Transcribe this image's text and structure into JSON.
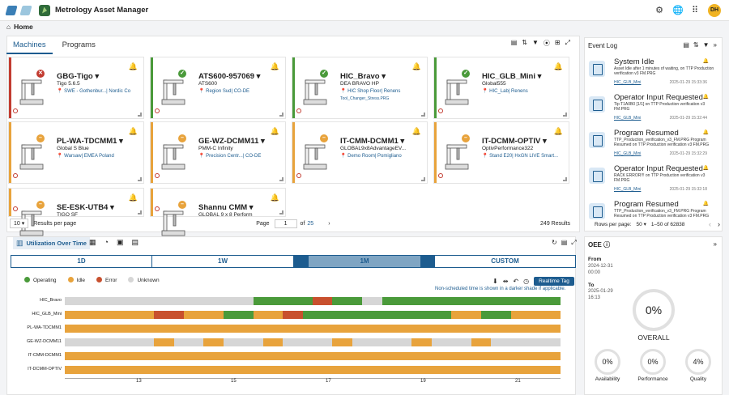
{
  "app": {
    "title": "Metrology Asset Manager",
    "avatar": "DH"
  },
  "breadcrumb": {
    "home": "Home"
  },
  "tabs": [
    {
      "label": "Machines"
    },
    {
      "label": "Programs"
    }
  ],
  "cards": [
    {
      "name": "GBG-Tigo",
      "model": "Tigo 5.6.5",
      "loc": "SWE - Gothenbur...| Nordic Co",
      "status": "error",
      "color": "#c23b30"
    },
    {
      "name": "ATS600-957069",
      "model": "ATS600",
      "loc": "Region Sud| CO-DE",
      "status": "operating",
      "color": "#4a9a3a"
    },
    {
      "name": "HIC_Bravo",
      "model": "DEA BRAVO HP",
      "loc": "HIC Shop Floor| Renens",
      "extra": "Tool_Changer_Stress.PRG",
      "status": "operating",
      "color": "#4a9a3a"
    },
    {
      "name": "HIC_GLB_Mini",
      "model": "Global555",
      "loc": "HIC_Lab| Renens",
      "status": "operating",
      "color": "#4a9a3a"
    },
    {
      "name": "PL-WA-TDCMM1",
      "model": "Global S Blue",
      "loc": "Warsaw| EMEA Poland",
      "status": "idle",
      "color": "#e8a33c"
    },
    {
      "name": "GE-WZ-DCMM11",
      "model": "PMM-C Infinity",
      "loc": "Precision Centr...| CO-DE",
      "status": "idle",
      "color": "#e8a33c"
    },
    {
      "name": "IT-CMM-DCMM1",
      "model": "GLOBAL9x8AdvantageEV...",
      "loc": "Demo Room| Pomigliano",
      "status": "idle",
      "color": "#e8a33c"
    },
    {
      "name": "IT-DCMM-OPTIV",
      "model": "OptivPerformance322",
      "loc": "Stand E20| HxGN LIVE Smart...",
      "status": "idle",
      "color": "#e8a33c"
    },
    {
      "name": "SE-ESK-UTB4",
      "model": "TIGO SF",
      "loc": "",
      "status": "idle",
      "color": "#e8a33c"
    },
    {
      "name": "Shannu CMM",
      "model": "GLOBAL 9 x 8 Perform",
      "loc": "",
      "status": "idle",
      "color": "#e8a33c"
    }
  ],
  "pager": {
    "rows": "10",
    "rows_label": "Results per page",
    "page_label": "Page",
    "page": "1",
    "of": "of",
    "total_pages": "25",
    "results": "249 Results"
  },
  "eventlog": {
    "title": "Event Log",
    "events": [
      {
        "title": "System Idle",
        "desc": "Asset Idle after 1 minutes of waiting, on TTP Production verification v3 FM.PRG",
        "machine": "HIC_GLB_Mini",
        "time": "2025-01-29 15:33:36"
      },
      {
        "title": "Operator Input Requested",
        "desc": "Tip T1A0B0 [1/1] on TTP Production verification v3 FM.PRG",
        "machine": "HIC_GLB_Mini",
        "time": "2025-01-29 15:32:44"
      },
      {
        "title": "Program Resumed",
        "desc": "TTP_Production_verification_v3_FM.PRG Program Resumed on TTP Production verification v3 FM.PRG",
        "machine": "HIC_GLB_Mini",
        "time": "2025-01-29 15:32:29"
      },
      {
        "title": "Operator Input Requested",
        "desc": "RACK ERROR!!! on TTP Production verification v3 FM.PRG",
        "machine": "HIC_GLB_Mini",
        "time": "2025-01-29 15:32:18"
      },
      {
        "title": "Program Resumed",
        "desc": "TTP_Production_verification_v3_FM.PRG Program Resumed on TTP Production verification v3 FM.PRG",
        "machine": "",
        "time": ""
      }
    ],
    "rows_label": "Rows per page:",
    "rows": "50",
    "range": "1–50 of 62838"
  },
  "util": {
    "title": "Utilization Over Time",
    "ranges": [
      "1D",
      "1W",
      "1M",
      "CUSTOM"
    ],
    "legend": [
      "Operating",
      "Idle",
      "Error",
      "Unknown"
    ],
    "realtime": "Realtime Tag",
    "note": "Non-scheduled time is shown in a darker shade if applicable.",
    "rows": [
      "HIC_Bravo",
      "HIC_GLB_Mini",
      "PL-WA-TDCMM1",
      "GE-WZ-DCMM11",
      "IT-CMM-DCMM1",
      "IT-DCMM-OPTIV"
    ],
    "ticks": [
      "13",
      "15",
      "17",
      "19",
      "21"
    ]
  },
  "oee": {
    "title": "OEE",
    "from_label": "From",
    "from": "2024-12-31",
    "from_time": "00:00",
    "to_label": "To",
    "to": "2025-01-29",
    "to_time": "16:13",
    "overall": "0%",
    "overall_label": "OVERALL",
    "availability": "0%",
    "availability_label": "Availability",
    "performance": "0%",
    "performance_label": "Performance",
    "quality": "4%",
    "quality_label": "Quality"
  },
  "colors": {
    "operating": "#4a9a3a",
    "idle": "#e8a33c",
    "error": "#c8502e",
    "unknown": "#d6d6d6",
    "accent": "#1d5c8f"
  }
}
